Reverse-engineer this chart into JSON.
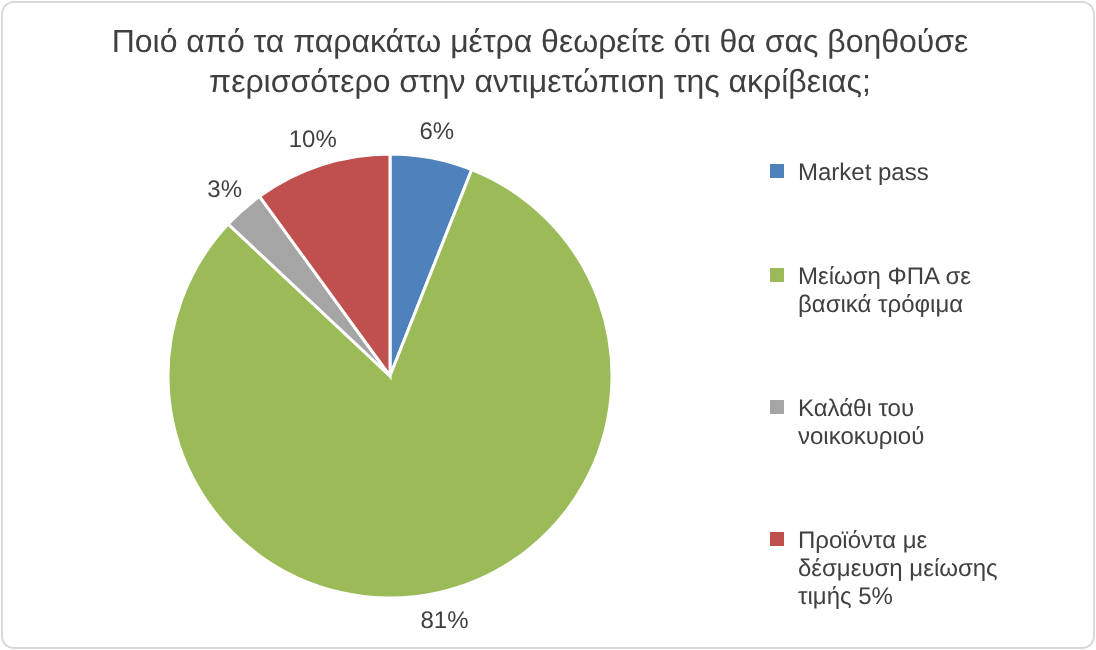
{
  "chart_data": {
    "type": "pie",
    "title": "Ποιό από τα παρακάτω μέτρα θεωρείτε ότι θα σας βοηθούσε περισσότερο στην αντιμετώπιση της ακρίβειας;",
    "categories": [
      "Market pass",
      "Μείωση ΦΠΑ σε βασικά τρόφιμα",
      "Καλάθι του νοικοκυριού",
      "Προϊόντα με δέσμευση μείωσης τιμής 5%"
    ],
    "values": [
      6,
      81,
      3,
      10
    ],
    "colors": [
      "#4f81bd",
      "#9bbb59",
      "#a5a5a5",
      "#c0504d"
    ],
    "value_labels": [
      "6%",
      "81%",
      "3%",
      "10%"
    ],
    "legend": "right"
  }
}
